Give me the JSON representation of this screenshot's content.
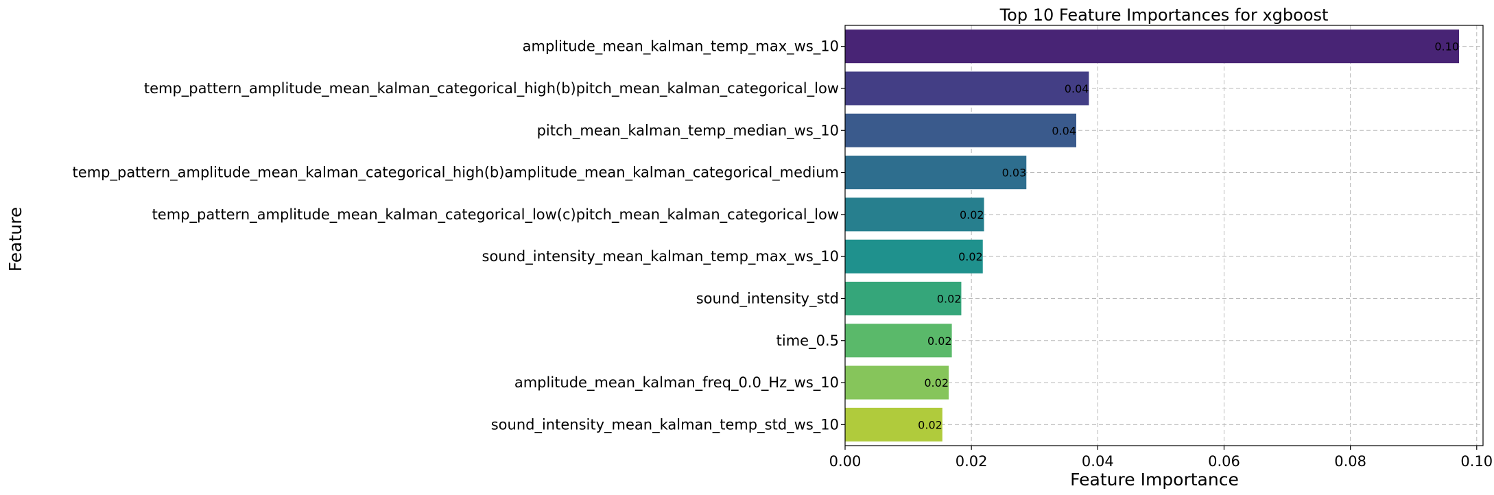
{
  "chart_data": {
    "type": "bar",
    "orientation": "horizontal",
    "title": "Top 10 Feature Importances for xgboost",
    "xlabel": "Feature Importance",
    "ylabel": "Feature",
    "categories": [
      "amplitude_mean_kalman_temp_max_ws_10",
      "temp_pattern_amplitude_mean_kalman_categorical_high(b)pitch_mean_kalman_categorical_low",
      "pitch_mean_kalman_temp_median_ws_10",
      "temp_pattern_amplitude_mean_kalman_categorical_high(b)amplitude_mean_kalman_categorical_medium",
      "temp_pattern_amplitude_mean_kalman_categorical_low(c)pitch_mean_kalman_categorical_low",
      "sound_intensity_mean_kalman_temp_max_ws_10",
      "sound_intensity_std",
      "time_0.5",
      "amplitude_mean_kalman_freq_0.0_Hz_ws_10",
      "sound_intensity_mean_kalman_temp_std_ws_10"
    ],
    "values": [
      0.0972,
      0.0386,
      0.0366,
      0.0287,
      0.022,
      0.0218,
      0.0184,
      0.0169,
      0.0164,
      0.0154
    ],
    "data_labels": [
      "0.10",
      "0.04",
      "0.04",
      "0.03",
      "0.02",
      "0.02",
      "0.02",
      "0.02",
      "0.02",
      "0.02"
    ],
    "colors": [
      "#482475",
      "#433e85",
      "#3a5a8c",
      "#2e6e8e",
      "#277f8e",
      "#1f918d",
      "#35a67a",
      "#5ab96a",
      "#86c55b",
      "#b0cb3c"
    ],
    "xlim": [
      0,
      0.101
    ],
    "xticks": [
      0.0,
      0.02,
      0.04,
      0.06,
      0.08,
      0.1
    ],
    "xtick_labels": [
      "0.00",
      "0.02",
      "0.04",
      "0.06",
      "0.08",
      "0.10"
    ],
    "grid": true,
    "legend": "none"
  }
}
